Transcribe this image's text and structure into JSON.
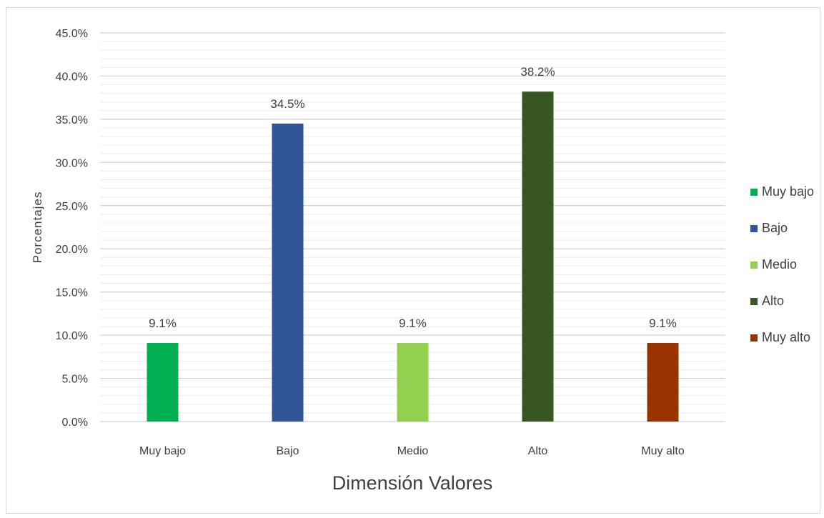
{
  "chart_data": {
    "type": "bar",
    "title": "",
    "xlabel": "Dimensión Valores",
    "ylabel": "Porcentajes",
    "categories": [
      "Muy bajo",
      "Bajo",
      "Medio",
      "Alto",
      "Muy alto"
    ],
    "values": [
      9.1,
      34.5,
      9.1,
      38.2,
      9.1
    ],
    "data_labels": [
      "9.1%",
      "34.5%",
      "9.1%",
      "38.2%",
      "9.1%"
    ],
    "colors": [
      "#00b050",
      "#2f5597",
      "#92d050",
      "#375623",
      "#993300"
    ],
    "ylim": [
      0,
      45
    ],
    "yticks": [
      "0.0%",
      "5.0%",
      "10.0%",
      "15.0%",
      "20.0%",
      "25.0%",
      "30.0%",
      "35.0%",
      "40.0%",
      "45.0%"
    ],
    "legend": {
      "position": "right",
      "entries": [
        "Muy bajo",
        "Bajo",
        "Medio",
        "Alto",
        "Muy alto"
      ]
    },
    "grid": true
  }
}
